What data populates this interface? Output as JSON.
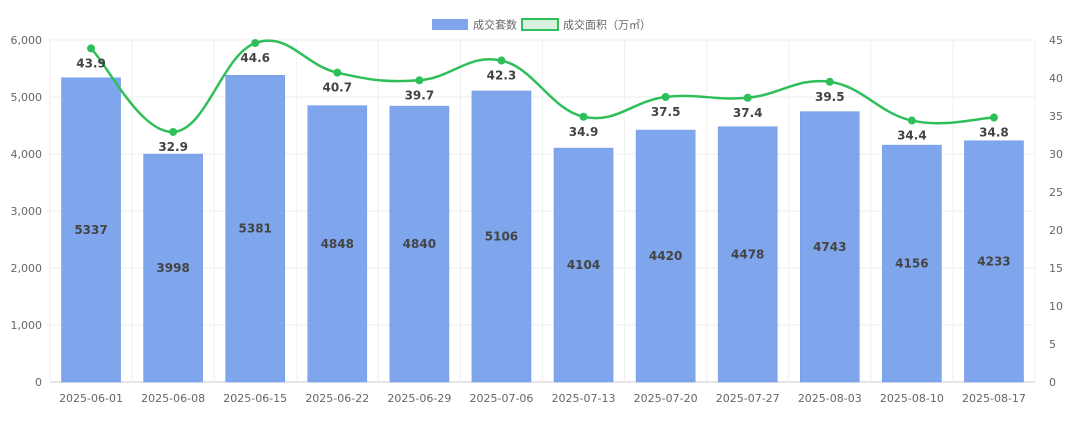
{
  "chart_data": {
    "type": "bar",
    "categories": [
      "2025-06-01",
      "2025-06-08",
      "2025-06-15",
      "2025-06-22",
      "2025-06-29",
      "2025-07-06",
      "2025-07-13",
      "2025-07-20",
      "2025-07-27",
      "2025-08-03",
      "2025-08-10",
      "2025-08-17"
    ],
    "series": [
      {
        "name": "成交套数",
        "type": "bar",
        "axis": "left",
        "color": "#7fa6ec",
        "values": [
          5337,
          3998,
          5381,
          4848,
          4840,
          5106,
          4104,
          4420,
          4478,
          4743,
          4156,
          4233
        ]
      },
      {
        "name": "成交面积（万㎡）",
        "type": "line",
        "axis": "right",
        "color": "#2fbf5a",
        "values": [
          43.9,
          32.9,
          44.6,
          40.7,
          39.7,
          42.3,
          34.9,
          37.5,
          37.4,
          39.5,
          34.4,
          34.8
        ]
      }
    ],
    "y_left": {
      "min": 0,
      "max": 6000,
      "ticks": [
        "0",
        "1,000",
        "2,000",
        "3,000",
        "4,000",
        "5,000",
        "6,000"
      ]
    },
    "y_right": {
      "min": 0,
      "max": 45,
      "ticks": [
        "0",
        "5",
        "10",
        "15",
        "20",
        "25",
        "30",
        "35",
        "40",
        "45"
      ]
    },
    "legend_position": "top-center",
    "grid": true
  }
}
